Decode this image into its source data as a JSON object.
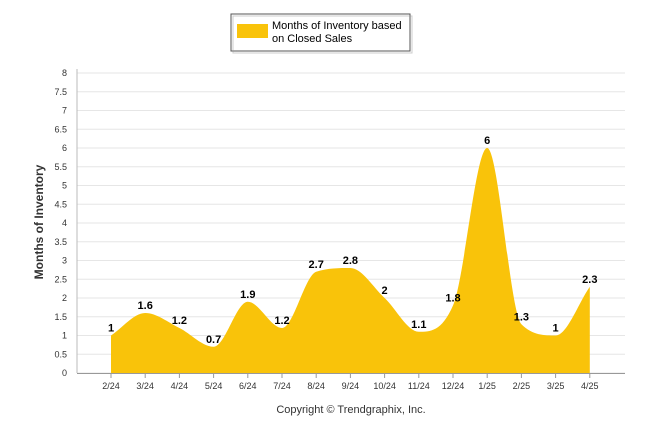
{
  "chart_data": {
    "type": "area",
    "categories": [
      "2/24",
      "3/24",
      "4/24",
      "5/24",
      "6/24",
      "7/24",
      "8/24",
      "9/24",
      "10/24",
      "11/24",
      "12/24",
      "1/25",
      "2/25",
      "3/25",
      "4/25"
    ],
    "series": [
      {
        "name": "Months of Inventory based on Closed Sales",
        "values": [
          1,
          1.6,
          1.2,
          0.7,
          1.9,
          1.2,
          2.7,
          2.8,
          2,
          1.1,
          1.8,
          6,
          1.3,
          1,
          2.3
        ],
        "color": "#f9c30a"
      }
    ],
    "data_labels": [
      "1",
      "1.6",
      "1.2",
      "0.7",
      "1.9",
      "1.2",
      "2.7",
      "2.8",
      "2",
      "1.1",
      "1.8",
      "6",
      "1.3",
      "1",
      "2.3"
    ],
    "legend_lines": [
      "Months of Inventory based",
      "on Closed Sales"
    ],
    "ylabel": "Months of Inventory",
    "xlabel": "",
    "ylim": [
      0,
      8
    ],
    "yticks": [
      "0",
      "0.5",
      "1",
      "1.5",
      "2",
      "2.5",
      "3",
      "3.5",
      "4",
      "4.5",
      "5",
      "5.5",
      "6",
      "6.5",
      "7",
      "7.5",
      "8"
    ],
    "grid": true,
    "legend_position": "top-center",
    "copyright": "Copyright © Trendgraphix, Inc."
  }
}
